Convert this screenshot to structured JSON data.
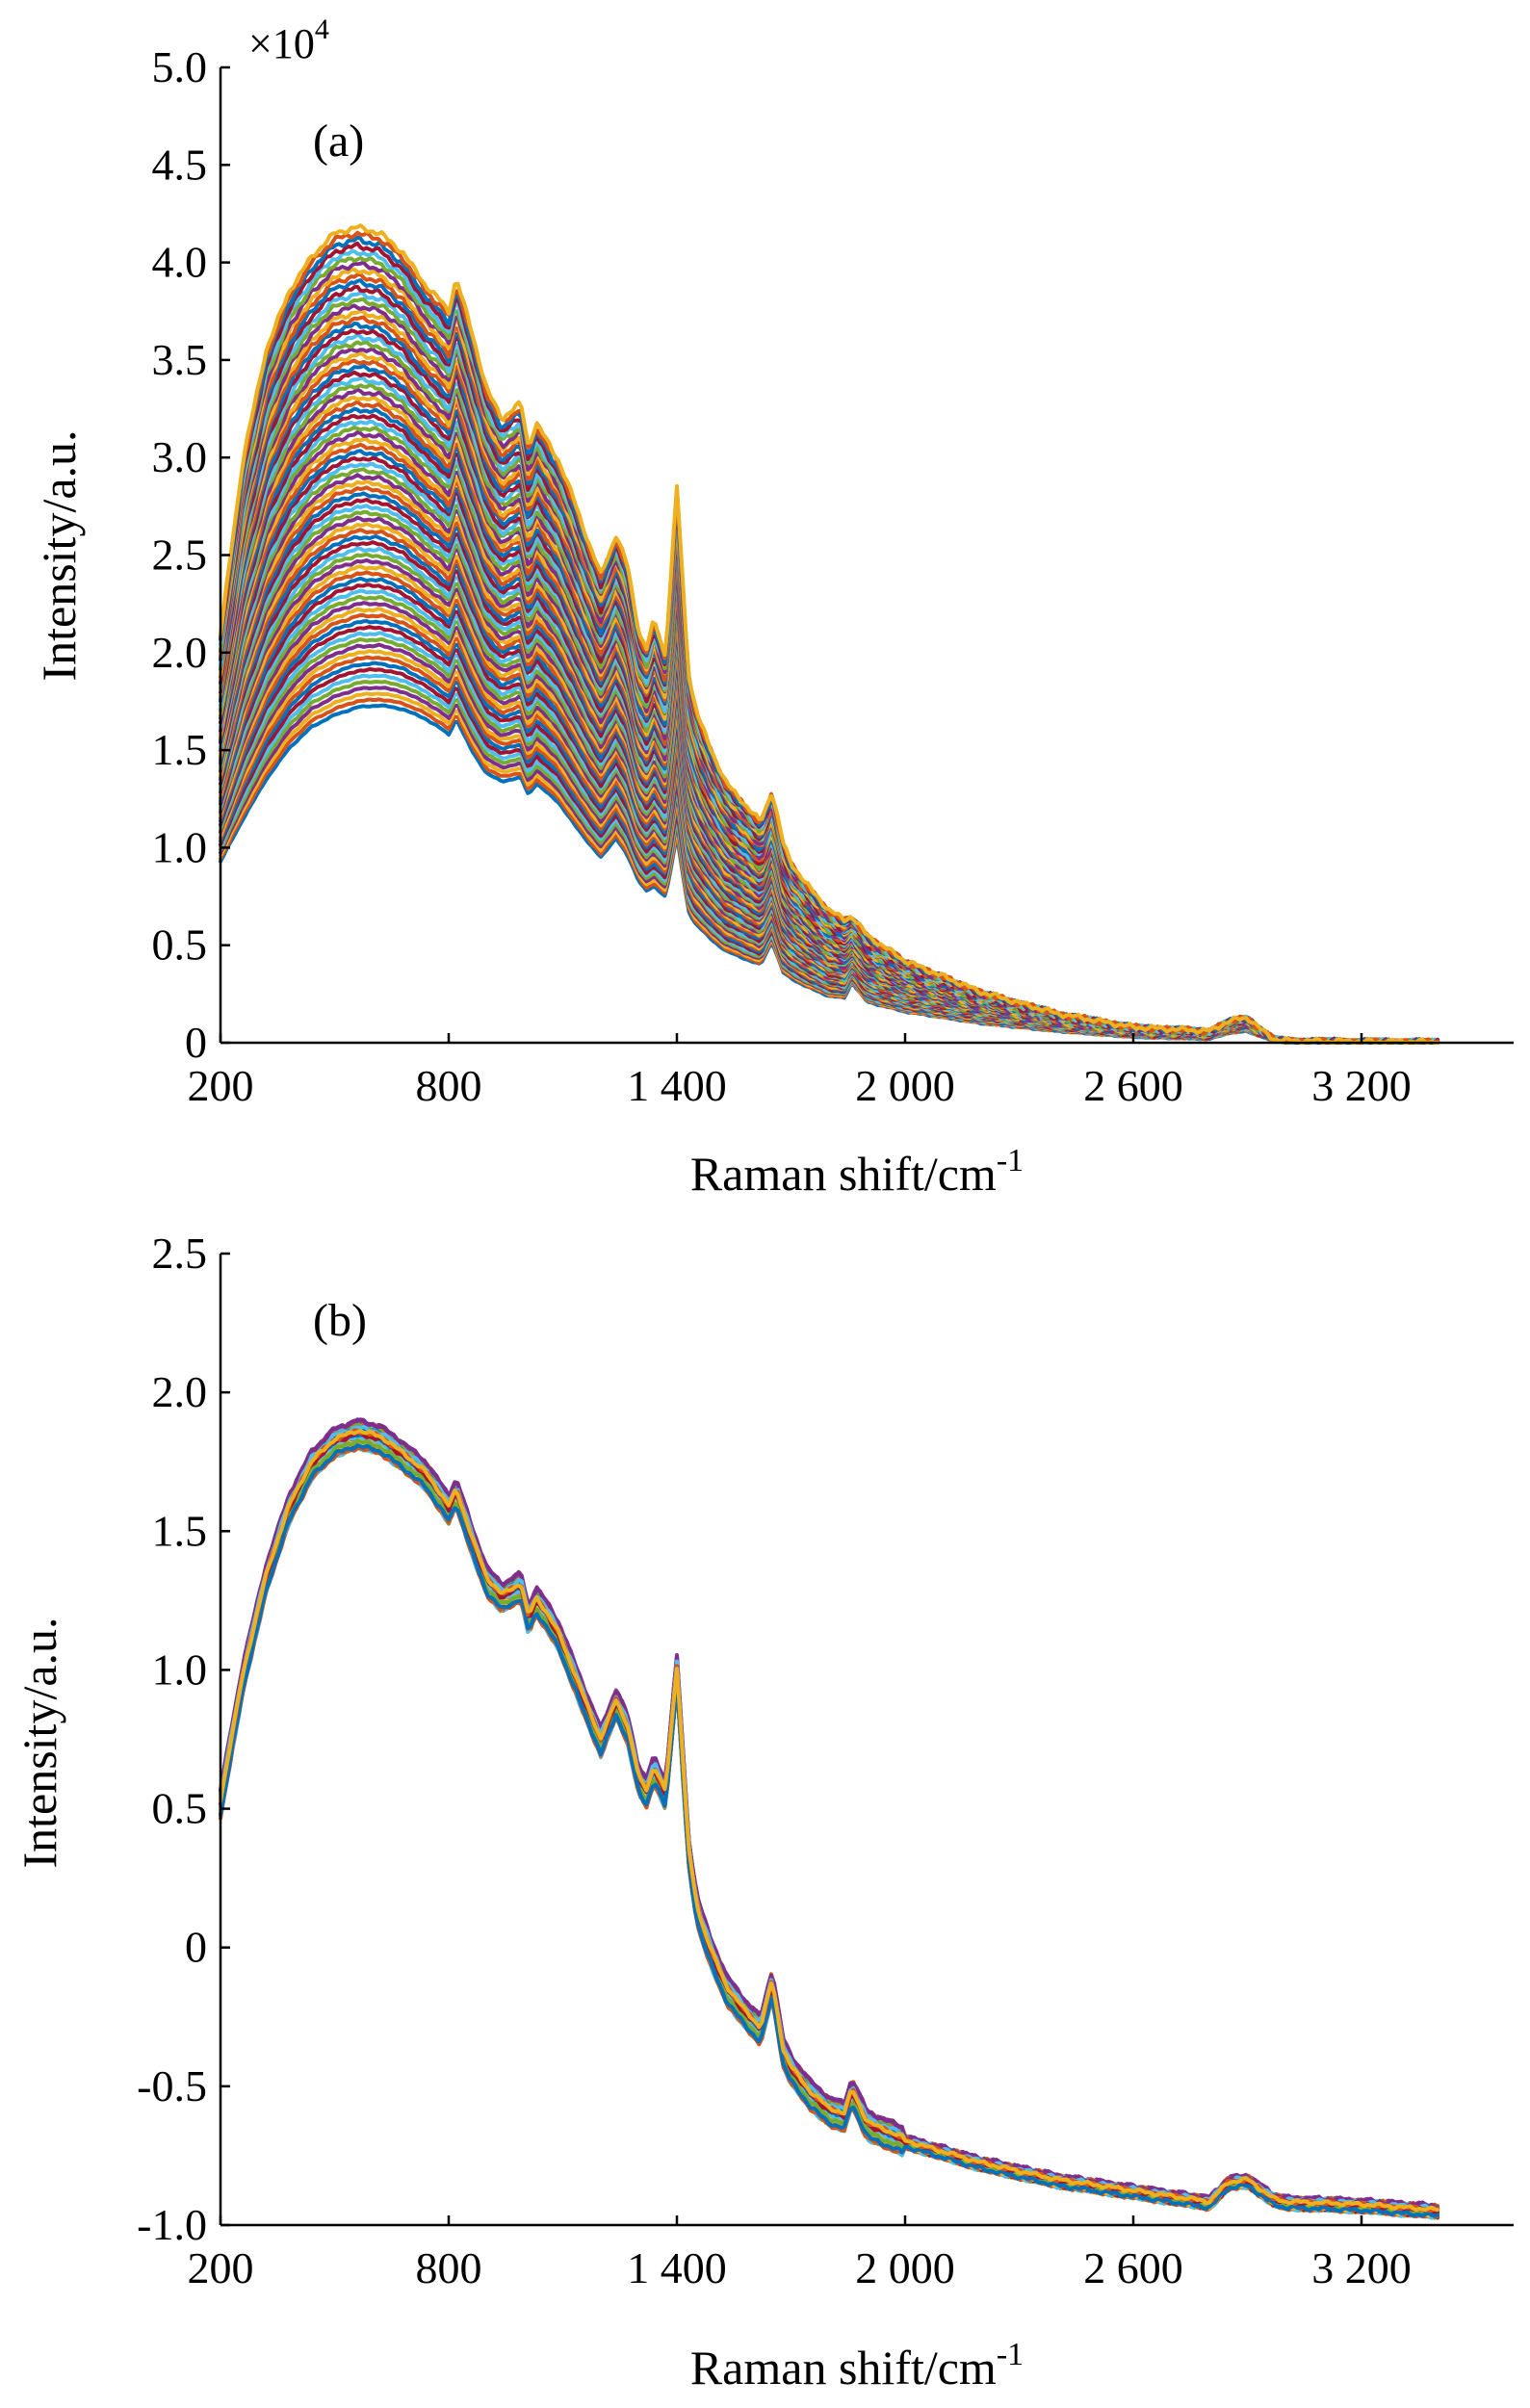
{
  "colors": [
    "#0072BD",
    "#D95319",
    "#EDB120",
    "#7E2F8E",
    "#77AC30",
    "#4DBEEE",
    "#A2142F"
  ],
  "chart_data": [
    {
      "type": "line",
      "panel_label": "(a)",
      "xlabel": "Raman shift/cm",
      "xlabel_sup": "-1",
      "ylabel": "Intensity/a.u.",
      "multiplier_text": "×10",
      "multiplier_sup": "4",
      "xlim": [
        200,
        3600
      ],
      "ylim": [
        0,
        50000
      ],
      "x_ticks": [
        200,
        800,
        1400,
        2000,
        2600,
        3200
      ],
      "x_tick_labels": [
        "200",
        "800",
        "1 400",
        "2 000",
        "2 600",
        "3 200"
      ],
      "y_ticks": [
        0,
        5000,
        10000,
        15000,
        20000,
        25000,
        30000,
        35000,
        40000,
        45000,
        50000
      ],
      "y_tick_labels": [
        "0",
        "0.5",
        "1.0",
        "1.5",
        "2.0",
        "2.5",
        "3.0",
        "3.5",
        "4.0",
        "4.5",
        "5.0"
      ],
      "x_range": [
        200,
        3400
      ],
      "n_spectra": 80,
      "spectrum_x": [
        200,
        260,
        320,
        380,
        440,
        500,
        560,
        620,
        680,
        740,
        780,
        800,
        820,
        860,
        900,
        940,
        990,
        1010,
        1030,
        1060,
        1090,
        1130,
        1170,
        1200,
        1240,
        1270,
        1300,
        1320,
        1340,
        1370,
        1400,
        1430,
        1445,
        1460,
        1490,
        1530,
        1580,
        1620,
        1650,
        1680,
        1700,
        1750,
        1800,
        1840,
        1860,
        1900,
        2000,
        2200,
        2400,
        2600,
        2800,
        2850,
        2900,
        2940,
        2970,
        3000,
        3200,
        3400
      ],
      "spectrum_y_min_envelope": [
        9300,
        11500,
        13500,
        15100,
        16200,
        16800,
        17200,
        17300,
        17100,
        16600,
        16100,
        15800,
        16600,
        15000,
        13800,
        13400,
        13600,
        12700,
        13300,
        12800,
        12300,
        11200,
        10200,
        9500,
        10500,
        9600,
        8300,
        7800,
        8000,
        7500,
        10600,
        6800,
        6200,
        5900,
        5300,
        4700,
        4300,
        4000,
        5200,
        3600,
        3300,
        2800,
        2400,
        2300,
        3100,
        2100,
        1600,
        1000,
        600,
        300,
        200,
        500,
        600,
        300,
        100,
        50,
        30,
        20
      ],
      "spectrum_y_max_envelope": [
        21000,
        30000,
        35500,
        38500,
        40300,
        41500,
        41800,
        41500,
        40500,
        38800,
        38000,
        37500,
        39200,
        36500,
        33500,
        32000,
        32800,
        30500,
        31800,
        30800,
        29800,
        27800,
        25500,
        24000,
        26000,
        24500,
        21000,
        20200,
        21700,
        19800,
        28500,
        19000,
        17500,
        16500,
        15000,
        13300,
        12200,
        11300,
        12900,
        10200,
        9200,
        7900,
        6800,
        6300,
        6500,
        5500,
        4200,
        2600,
        1500,
        800,
        600,
        1100,
        1300,
        600,
        200,
        100,
        60,
        40
      ]
    },
    {
      "type": "line",
      "panel_label": "(b)",
      "xlabel": "Raman shift/cm",
      "xlabel_sup": "-1",
      "ylabel": "Intensity/a.u.",
      "xlim": [
        200,
        3600
      ],
      "ylim": [
        -1.0,
        2.5
      ],
      "x_ticks": [
        200,
        800,
        1400,
        2000,
        2600,
        3200
      ],
      "x_tick_labels": [
        "200",
        "800",
        "1 400",
        "2 000",
        "2 600",
        "3 200"
      ],
      "y_ticks": [
        -1.0,
        -0.5,
        0,
        0.5,
        1.0,
        1.5,
        2.0,
        2.5
      ],
      "y_tick_labels": [
        "-1.0",
        "-0.5",
        "0",
        "0.5",
        "1.0",
        "1.5",
        "2.0",
        "2.5"
      ],
      "x_range": [
        200,
        3400
      ],
      "n_spectra": 80,
      "spectrum_x": [
        200,
        260,
        320,
        380,
        440,
        500,
        560,
        620,
        680,
        740,
        780,
        800,
        820,
        860,
        900,
        940,
        990,
        1010,
        1030,
        1060,
        1090,
        1130,
        1170,
        1200,
        1240,
        1270,
        1300,
        1320,
        1340,
        1370,
        1400,
        1430,
        1445,
        1460,
        1490,
        1530,
        1580,
        1620,
        1650,
        1680,
        1700,
        1750,
        1800,
        1840,
        1860,
        1900,
        2000,
        2200,
        2400,
        2600,
        2800,
        2850,
        2900,
        2940,
        2970,
        3000,
        3200,
        3400
      ],
      "spectrum_y_mean": [
        0.52,
        0.98,
        1.33,
        1.58,
        1.74,
        1.82,
        1.85,
        1.83,
        1.77,
        1.7,
        1.62,
        1.58,
        1.64,
        1.47,
        1.32,
        1.26,
        1.3,
        1.18,
        1.25,
        1.19,
        1.12,
        0.98,
        0.84,
        0.74,
        0.88,
        0.79,
        0.6,
        0.56,
        0.64,
        0.55,
        1.0,
        0.36,
        0.2,
        0.1,
        -0.02,
        -0.15,
        -0.24,
        -0.3,
        -0.13,
        -0.38,
        -0.44,
        -0.53,
        -0.59,
        -0.61,
        -0.52,
        -0.64,
        -0.7,
        -0.78,
        -0.84,
        -0.88,
        -0.92,
        -0.85,
        -0.84,
        -0.88,
        -0.91,
        -0.92,
        -0.93,
        -0.95
      ],
      "spread": 0.05
    }
  ]
}
